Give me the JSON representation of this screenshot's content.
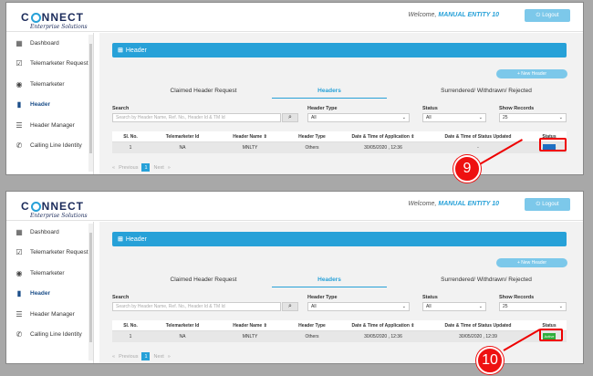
{
  "brand": {
    "name_a": "C",
    "name_b": "NNECT",
    "tagline": "Enterprise Solutions"
  },
  "header": {
    "welcome_prefix": "Welcome,",
    "user": "MANUAL ENTITY 10",
    "logout": "Logout"
  },
  "sidebar": {
    "items": [
      {
        "label": "Dashboard",
        "icon": "dashboard-icon"
      },
      {
        "label": "Telemarketer Request",
        "icon": "check-square-icon"
      },
      {
        "label": "Telemarketer",
        "icon": "user-circle-icon"
      },
      {
        "label": "Header",
        "icon": "bookmark-icon",
        "active": true
      },
      {
        "label": "Header Manager",
        "icon": "list-icon"
      },
      {
        "label": "Calling Line Identity",
        "icon": "phone-icon"
      }
    ]
  },
  "main": {
    "title": "Header",
    "new_header": "New Header",
    "tabs": [
      "Claimed Header Request",
      "Headers",
      "Surrendered/ Withdrawn/ Rejected"
    ],
    "filters": {
      "search_label": "Search",
      "search_placeholder": "Search by Header Name, Ref. No., Header Id & TM Id",
      "type_label": "Header Type",
      "type_value": "All",
      "status_label": "Status",
      "status_value": "All",
      "show_label": "Show Records",
      "show_value": "25"
    },
    "columns": [
      "Sl. No.",
      "Telemarketer Id",
      "Header Name",
      "Header Type",
      "Date & Time of Application",
      "Date & Time of Status Updated",
      "Status"
    ],
    "pager": {
      "prev": "Previous",
      "page": "1",
      "next": "Next"
    }
  },
  "screens": [
    {
      "row": [
        "1",
        "NA",
        "MNLTY",
        "Others",
        "30/05/2020 , 12:36",
        "-",
        "Approve"
      ],
      "callout": "9"
    },
    {
      "row": [
        "1",
        "NA",
        "MNLTY",
        "Others",
        "30/05/2020 , 12:36",
        "30/05/2020 , 12:39",
        "Active"
      ],
      "callout": "10"
    }
  ],
  "colors": {
    "accent": "#27a1d8",
    "approve": "#1e6fc2",
    "active": "#2eae3c",
    "callout": "#e11111"
  }
}
